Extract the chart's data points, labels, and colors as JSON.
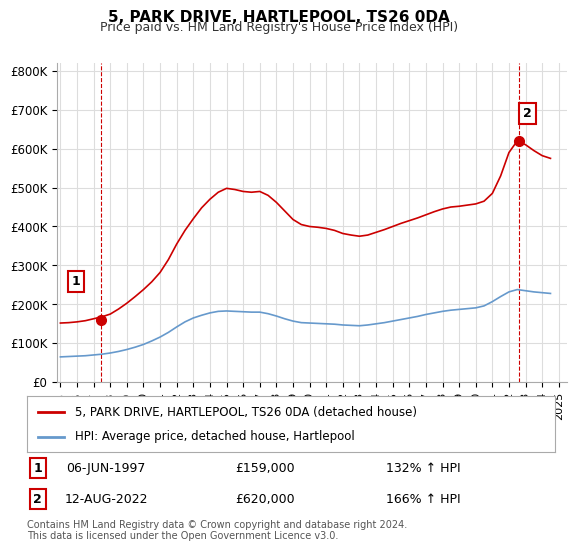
{
  "title": "5, PARK DRIVE, HARTLEPOOL, TS26 0DA",
  "subtitle": "Price paid vs. HM Land Registry's House Price Index (HPI)",
  "red_label": "5, PARK DRIVE, HARTLEPOOL, TS26 0DA (detached house)",
  "blue_label": "HPI: Average price, detached house, Hartlepool",
  "sale1_date": "06-JUN-1997",
  "sale1_price": 159000,
  "sale1_hpi": "132% ↑ HPI",
  "sale2_date": "12-AUG-2022",
  "sale2_price": 620000,
  "sale2_hpi": "166% ↑ HPI",
  "footer": "Contains HM Land Registry data © Crown copyright and database right 2024.\nThis data is licensed under the Open Government Licence v3.0.",
  "red_color": "#cc0000",
  "blue_color": "#6699cc",
  "marker_color": "#cc0000",
  "grid_color": "#dddddd",
  "background_color": "#ffffff",
  "ylim": [
    0,
    820000
  ],
  "yticks": [
    0,
    100000,
    200000,
    300000,
    400000,
    500000,
    600000,
    700000,
    800000
  ],
  "ytick_labels": [
    "£0",
    "£100K",
    "£200K",
    "£300K",
    "£400K",
    "£500K",
    "£600K",
    "£700K",
    "£800K"
  ],
  "years_x": [
    1995,
    1995.5,
    1996,
    1996.5,
    1997,
    1997.5,
    1998,
    1998.5,
    1999,
    1999.5,
    2000,
    2000.5,
    2001,
    2001.5,
    2002,
    2002.5,
    2003,
    2003.5,
    2004,
    2004.5,
    2005,
    2005.5,
    2006,
    2006.5,
    2007,
    2007.5,
    2008,
    2008.5,
    2009,
    2009.5,
    2010,
    2010.5,
    2011,
    2011.5,
    2012,
    2012.5,
    2013,
    2013.5,
    2014,
    2014.5,
    2015,
    2015.5,
    2016,
    2016.5,
    2017,
    2017.5,
    2018,
    2018.5,
    2019,
    2019.5,
    2020,
    2020.5,
    2021,
    2021.5,
    2022,
    2022.5,
    2023,
    2023.5,
    2024,
    2024.5
  ],
  "red_y": [
    152000,
    153000,
    155000,
    158000,
    163000,
    168000,
    175000,
    188000,
    203000,
    220000,
    238000,
    258000,
    282000,
    315000,
    355000,
    390000,
    420000,
    448000,
    470000,
    488000,
    498000,
    495000,
    490000,
    488000,
    490000,
    480000,
    462000,
    440000,
    418000,
    405000,
    400000,
    398000,
    395000,
    390000,
    382000,
    378000,
    375000,
    378000,
    385000,
    392000,
    400000,
    408000,
    415000,
    422000,
    430000,
    438000,
    445000,
    450000,
    452000,
    455000,
    458000,
    465000,
    485000,
    530000,
    590000,
    620000,
    610000,
    595000,
    582000,
    575000
  ],
  "blue_y": [
    65000,
    66000,
    67000,
    68000,
    70000,
    72000,
    75000,
    79000,
    84000,
    90000,
    97000,
    106000,
    116000,
    128000,
    142000,
    155000,
    165000,
    172000,
    178000,
    182000,
    183000,
    182000,
    181000,
    180000,
    180000,
    176000,
    170000,
    163000,
    157000,
    153000,
    152000,
    151000,
    150000,
    149000,
    147000,
    146000,
    145000,
    147000,
    150000,
    153000,
    157000,
    161000,
    165000,
    169000,
    174000,
    178000,
    182000,
    185000,
    187000,
    189000,
    191000,
    196000,
    207000,
    220000,
    232000,
    238000,
    235000,
    232000,
    230000,
    228000
  ],
  "sale1_x": 1997.42,
  "sale1_y": 159000,
  "sale2_x": 2022.62,
  "sale2_y": 620000,
  "xlim": [
    1994.8,
    2025.5
  ],
  "xticks": [
    1995,
    1996,
    1997,
    1998,
    1999,
    2000,
    2001,
    2002,
    2003,
    2004,
    2005,
    2006,
    2007,
    2008,
    2009,
    2010,
    2011,
    2012,
    2013,
    2014,
    2015,
    2016,
    2017,
    2018,
    2019,
    2020,
    2021,
    2022,
    2023,
    2024,
    2025
  ]
}
